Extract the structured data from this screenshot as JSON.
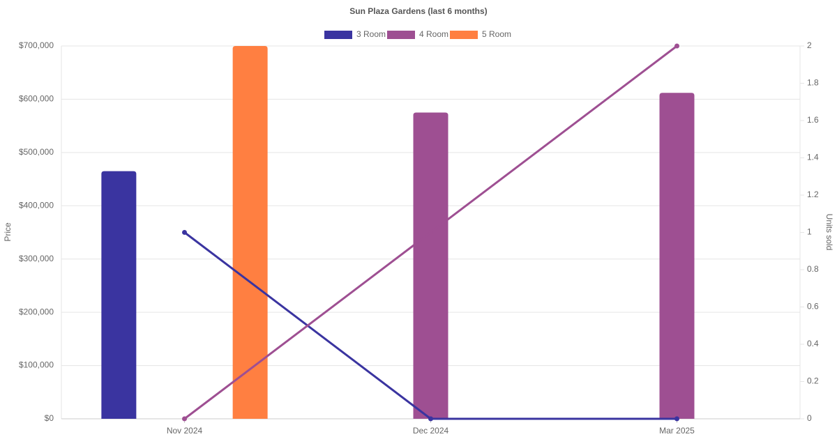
{
  "chart_data": {
    "type": "bar-line",
    "title": "Sun Plaza Gardens (last 6 months)",
    "categories": [
      "Nov 2024",
      "Dec 2024",
      "Mar 2025"
    ],
    "y_label": "Price",
    "y2_label": "Units sold",
    "series": [
      {
        "name": "3 Room",
        "color": "#3a34a0",
        "values": [
          465000,
          null,
          null
        ],
        "units": [
          1,
          0,
          0
        ]
      },
      {
        "name": "4 Room",
        "color": "#9e4f92",
        "values": [
          null,
          575000,
          612000
        ],
        "units": [
          0,
          1,
          2
        ]
      },
      {
        "name": "5 Room",
        "color": "#ff7f41",
        "values": [
          700000,
          null,
          null
        ],
        "units": [
          null,
          null,
          null
        ]
      }
    ],
    "ylim": [
      0,
      700000
    ],
    "yticks": [
      {
        "value": 0,
        "label": "$0"
      },
      {
        "value": 100000,
        "label": "$100,000"
      },
      {
        "value": 200000,
        "label": "$200,000"
      },
      {
        "value": 300000,
        "label": "$300,000"
      },
      {
        "value": 400000,
        "label": "$400,000"
      },
      {
        "value": 500000,
        "label": "$500,000"
      },
      {
        "value": 600000,
        "label": "$600,000"
      },
      {
        "value": 700000,
        "label": "$700,000"
      }
    ],
    "y2lim": [
      0,
      2
    ],
    "y2ticks": [
      0,
      0.2,
      0.4,
      0.6,
      0.8,
      1,
      1.2,
      1.4,
      1.6,
      1.8,
      2
    ],
    "grid": true
  }
}
